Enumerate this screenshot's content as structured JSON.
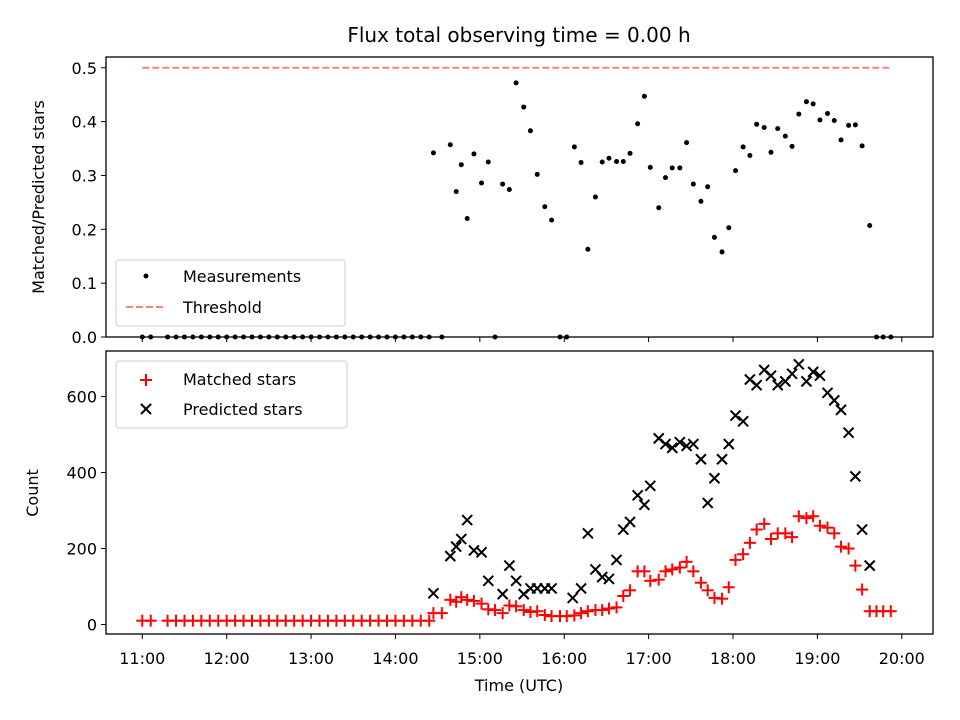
{
  "chart_data": {
    "title": "Flux total observing time = 0.00 h",
    "xlabel": "Time (UTC)",
    "x_ticks": [
      "11:00",
      "12:00",
      "13:00",
      "14:00",
      "15:00",
      "16:00",
      "17:00",
      "18:00",
      "19:00",
      "20:00"
    ],
    "xlim_hours": [
      10.57,
      20.37
    ],
    "top": {
      "type": "scatter",
      "ylabel": "Matched/Predicted stars",
      "ylim": [
        0,
        0.52
      ],
      "y_ticks": [
        "0.0",
        "0.1",
        "0.2",
        "0.3",
        "0.4",
        "0.5"
      ],
      "legend_position": "lower-left",
      "series": [
        {
          "name": "Measurements",
          "color": "#000000",
          "marker": "dot",
          "x": [
            11.0,
            11.1,
            11.3,
            11.4,
            11.5,
            11.6,
            11.7,
            11.8,
            11.9,
            12.0,
            12.1,
            12.2,
            12.3,
            12.4,
            12.5,
            12.6,
            12.7,
            12.8,
            12.9,
            13.0,
            13.1,
            13.2,
            13.3,
            13.4,
            13.5,
            13.6,
            13.7,
            13.8,
            13.9,
            14.0,
            14.1,
            14.2,
            14.3,
            14.4,
            14.45,
            14.55,
            14.65,
            14.72,
            14.78,
            14.85,
            14.93,
            15.02,
            15.1,
            15.18,
            15.27,
            15.35,
            15.43,
            15.52,
            15.6,
            15.68,
            15.77,
            15.85,
            15.95,
            16.03,
            16.12,
            16.2,
            16.28,
            16.37,
            16.45,
            16.53,
            16.62,
            16.7,
            16.78,
            16.87,
            16.95,
            17.02,
            17.12,
            17.2,
            17.28,
            17.37,
            17.45,
            17.53,
            17.62,
            17.7,
            17.78,
            17.87,
            17.95,
            18.03,
            18.12,
            18.2,
            18.28,
            18.37,
            18.45,
            18.53,
            18.62,
            18.7,
            18.78,
            18.87,
            18.95,
            19.03,
            19.12,
            19.2,
            19.28,
            19.37,
            19.45,
            19.53,
            19.62,
            19.7,
            19.78,
            19.87
          ],
          "y": [
            0,
            0,
            0,
            0,
            0,
            0,
            0,
            0,
            0,
            0,
            0,
            0,
            0,
            0,
            0,
            0,
            0,
            0,
            0,
            0,
            0,
            0,
            0,
            0,
            0,
            0,
            0,
            0,
            0,
            0,
            0,
            0,
            0,
            0,
            0.342,
            0,
            0.357,
            0.27,
            0.32,
            0.22,
            0.34,
            0.286,
            0.325,
            0,
            0.284,
            0.274,
            0.472,
            0.427,
            0.383,
            0.302,
            0.242,
            0.217,
            0,
            0,
            0.353,
            0.324,
            0.163,
            0.26,
            0.325,
            0.332,
            0.326,
            0.326,
            0.341,
            0.396,
            0.447,
            0.315,
            0.24,
            0.296,
            0.314,
            0.314,
            0.361,
            0.284,
            0.252,
            0.279,
            0.185,
            0.158,
            0.203,
            0.309,
            0.353,
            0.337,
            0.395,
            0.389,
            0.343,
            0.387,
            0.373,
            0.354,
            0.414,
            0.437,
            0.433,
            0.403,
            0.415,
            0.402,
            0.366,
            0.393,
            0.394,
            0.355,
            0.207,
            0,
            0,
            0
          ]
        },
        {
          "name": "Threshold",
          "color": "#ff7f7f",
          "style": "dashed",
          "x": [
            11.0,
            19.87
          ],
          "y": [
            0.5,
            0.5
          ]
        }
      ]
    },
    "bottom": {
      "type": "scatter",
      "ylabel": "Count",
      "ylim": [
        -25,
        720
      ],
      "y_ticks": [
        {
          "v": 0,
          "label": "0"
        },
        {
          "v": 200,
          "label": "200"
        },
        {
          "v": 400,
          "label": "400"
        },
        {
          "v": 600,
          "label": "600"
        }
      ],
      "legend_position": "upper-left",
      "series": [
        {
          "name": "Matched stars",
          "color": "#ff0000",
          "marker": "plus",
          "x": [
            11.0,
            11.1,
            11.3,
            11.4,
            11.5,
            11.6,
            11.7,
            11.8,
            11.9,
            12.0,
            12.1,
            12.2,
            12.3,
            12.4,
            12.5,
            12.6,
            12.7,
            12.8,
            12.9,
            13.0,
            13.1,
            13.2,
            13.3,
            13.4,
            13.5,
            13.6,
            13.7,
            13.8,
            13.9,
            14.0,
            14.1,
            14.2,
            14.3,
            14.4,
            14.45,
            14.55,
            14.65,
            14.72,
            14.78,
            14.85,
            14.93,
            15.02,
            15.1,
            15.18,
            15.27,
            15.35,
            15.43,
            15.52,
            15.6,
            15.68,
            15.77,
            15.85,
            15.95,
            16.03,
            16.12,
            16.2,
            16.28,
            16.37,
            16.45,
            16.53,
            16.62,
            16.7,
            16.78,
            16.87,
            16.95,
            17.02,
            17.12,
            17.2,
            17.28,
            17.37,
            17.45,
            17.53,
            17.62,
            17.7,
            17.78,
            17.87,
            17.95,
            18.03,
            18.12,
            18.2,
            18.28,
            18.37,
            18.45,
            18.53,
            18.62,
            18.7,
            18.78,
            18.87,
            18.95,
            19.03,
            19.12,
            19.2,
            19.28,
            19.37,
            19.45,
            19.53,
            19.62,
            19.7,
            19.78,
            19.87
          ],
          "y": [
            10,
            10,
            10,
            10,
            10,
            10,
            10,
            10,
            10,
            10,
            10,
            10,
            10,
            10,
            10,
            10,
            10,
            10,
            10,
            10,
            10,
            10,
            10,
            10,
            10,
            10,
            10,
            10,
            10,
            10,
            10,
            10,
            10,
            10,
            30,
            30,
            65,
            60,
            72,
            65,
            62,
            55,
            40,
            38,
            30,
            50,
            48,
            38,
            33,
            35,
            25,
            22,
            22,
            22,
            24,
            30,
            35,
            38,
            38,
            42,
            45,
            75,
            90,
            140,
            140,
            115,
            118,
            140,
            145,
            150,
            165,
            140,
            110,
            90,
            70,
            68,
            98,
            170,
            185,
            215,
            250,
            265,
            225,
            240,
            240,
            230,
            285,
            280,
            285,
            260,
            255,
            240,
            205,
            200,
            155,
            92,
            35,
            35,
            35,
            35
          ]
        },
        {
          "name": "Predicted stars",
          "color": "#000000",
          "marker": "x",
          "x": [
            14.45,
            14.65,
            14.72,
            14.78,
            14.85,
            14.93,
            15.02,
            15.1,
            15.27,
            15.35,
            15.43,
            15.52,
            15.6,
            15.68,
            15.77,
            15.85,
            16.1,
            16.2,
            16.28,
            16.37,
            16.45,
            16.53,
            16.62,
            16.7,
            16.78,
            16.87,
            16.95,
            17.02,
            17.12,
            17.2,
            17.28,
            17.37,
            17.45,
            17.53,
            17.62,
            17.7,
            17.78,
            17.87,
            17.95,
            18.03,
            18.12,
            18.2,
            18.28,
            18.37,
            18.45,
            18.53,
            18.62,
            18.7,
            18.78,
            18.87,
            18.95,
            19.03,
            19.12,
            19.2,
            19.28,
            19.37,
            19.45,
            19.53,
            19.62
          ],
          "y": [
            82,
            180,
            205,
            225,
            275,
            195,
            190,
            115,
            80,
            155,
            115,
            80,
            95,
            95,
            95,
            95,
            70,
            95,
            240,
            145,
            125,
            120,
            170,
            250,
            270,
            340,
            315,
            365,
            490,
            475,
            465,
            480,
            470,
            475,
            435,
            320,
            385,
            435,
            475,
            550,
            535,
            645,
            630,
            670,
            655,
            630,
            640,
            660,
            685,
            640,
            665,
            655,
            610,
            590,
            565,
            505,
            390,
            250,
            155
          ]
        }
      ]
    }
  }
}
